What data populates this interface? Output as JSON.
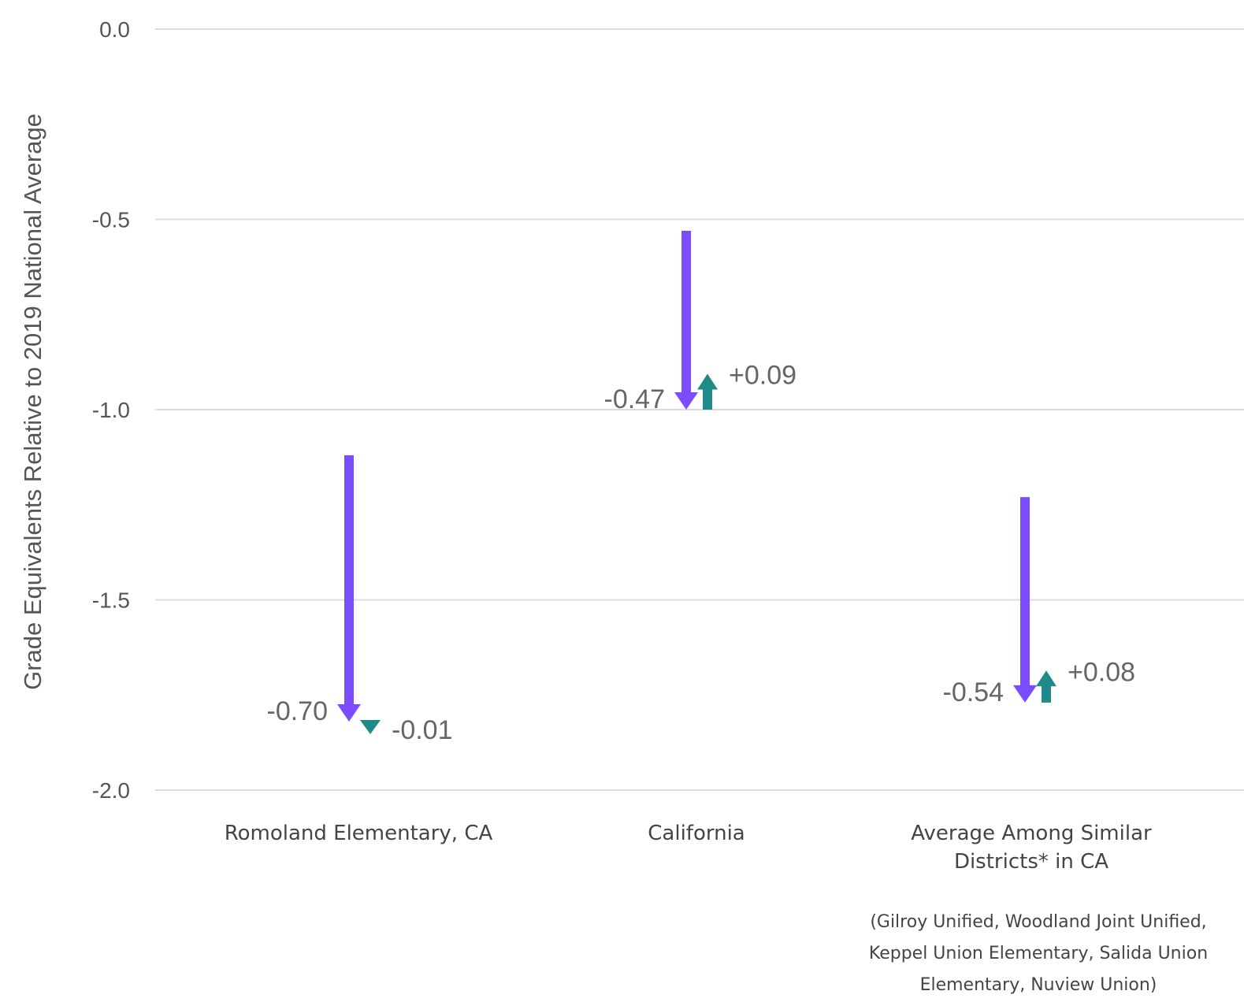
{
  "colors": {
    "decline": "#7c4dff",
    "change": "#1f8a87",
    "grid": "#dcdcdc",
    "text": "#555555"
  },
  "chart_data": {
    "type": "arrow",
    "ylabel": "Grade Equivalents Relative to 2019 National Average",
    "ylim": [
      -2.0,
      0.0
    ],
    "yticks": [
      0.0,
      -0.5,
      -1.0,
      -1.5,
      -2.0
    ],
    "ytick_labels": [
      "0.0",
      "-0.5",
      "-1.0",
      "-1.5",
      "-2.0"
    ],
    "grid": true,
    "categories": [
      {
        "label_lines": [
          "Romoland Elementary, CA"
        ],
        "decline": {
          "start": -1.12,
          "end": -1.82,
          "label": "-0.70"
        },
        "change": {
          "start": -1.82,
          "end": -1.83,
          "label": "-0.01",
          "direction": "down"
        }
      },
      {
        "label_lines": [
          "California"
        ],
        "decline": {
          "start": -0.53,
          "end": -1.0,
          "label": "-0.47"
        },
        "change": {
          "start": -1.0,
          "end": -0.91,
          "label": "+0.09",
          "direction": "up"
        }
      },
      {
        "label_lines": [
          "Average Among Similar",
          "Districts* in CA"
        ],
        "decline": {
          "start": -1.23,
          "end": -1.77,
          "label": "-0.54"
        },
        "change": {
          "start": -1.77,
          "end": -1.69,
          "label": "+0.08",
          "direction": "up"
        }
      }
    ],
    "footnote_lines": [
      "(Gilroy Unified, Woodland Joint Unified,",
      "Keppel Union Elementary, Salida Union",
      "Elementary, Nuview Union)"
    ]
  }
}
